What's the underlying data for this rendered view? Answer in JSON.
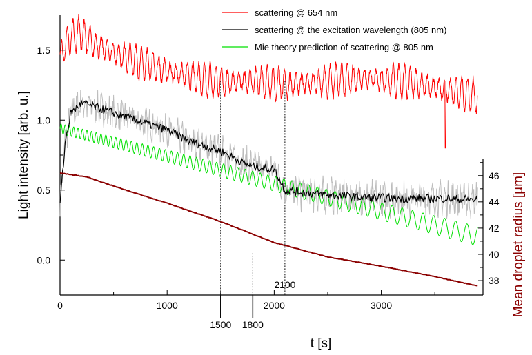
{
  "chart_data": {
    "type": "line",
    "xlabel": "t [s]",
    "ylabel_left": "Light intensity [arb. u.]",
    "ylabel_right": "Mean droplet radius [µm]",
    "xlim": [
      0,
      3950
    ],
    "ylim_left": [
      -0.25,
      1.75
    ],
    "ylim_right": [
      36.9,
      47.3
    ],
    "x_ticks": [
      "0",
      "1000",
      "2000",
      "3000"
    ],
    "y_left_ticks": [
      "0.0",
      "0.5",
      "1.0",
      "1.5"
    ],
    "y_right_ticks": [
      "38",
      "40",
      "42",
      "44",
      "46"
    ],
    "marker_labels": [
      "1500",
      "1800",
      "2100"
    ],
    "markers": [
      {
        "t": 1500,
        "label": "1500"
      },
      {
        "t": 1800,
        "label": "1800"
      },
      {
        "t": 2100,
        "label": "2100"
      }
    ],
    "colors": {
      "scatter_654": "#ff0000",
      "scatter_805": "#000000",
      "scatter_805_raw": "#bdbdbd",
      "mie": "#00e000",
      "radius": "#8b0000",
      "right_axis_label": "#8b0000"
    },
    "grid": false,
    "legend_position": "top-right",
    "series": [
      {
        "name": "scattering @ 654 nm",
        "axis": "left",
        "color": "#ff0000",
        "oscillation_amplitude": 0.12,
        "x": [
          0,
          100,
          200,
          300,
          500,
          700,
          1000,
          1300,
          1500,
          1800,
          2100,
          2400,
          2800,
          3200,
          3600,
          3900
        ],
        "y": [
          1.45,
          1.6,
          1.62,
          1.55,
          1.48,
          1.42,
          1.35,
          1.3,
          1.27,
          1.28,
          1.25,
          1.27,
          1.3,
          1.28,
          1.22,
          1.17
        ]
      },
      {
        "name": "scattering @ the excitation wavelength (805 nm)",
        "axis": "left",
        "color": "#000000",
        "x": [
          0,
          50,
          100,
          200,
          300,
          500,
          700,
          1000,
          1200,
          1500,
          1700,
          1800,
          2000,
          2100,
          2400,
          2800,
          3200,
          3600,
          3900
        ],
        "y": [
          0.4,
          0.85,
          1.05,
          1.12,
          1.1,
          1.05,
          1.0,
          0.93,
          0.85,
          0.78,
          0.7,
          0.67,
          0.65,
          0.5,
          0.47,
          0.45,
          0.44,
          0.44,
          0.43
        ]
      },
      {
        "name": "Mie theory prediction of scattering @ 805 nm",
        "axis": "left",
        "color": "#00e000",
        "oscillation_amplitude_start": 0.035,
        "oscillation_amplitude_end": 0.07,
        "x": [
          0,
          3900
        ],
        "y": [
          0.94,
          0.17
        ]
      },
      {
        "axis": "right",
        "color": "#8b0000",
        "x": [
          0,
          250,
          500,
          1000,
          1500,
          2000,
          2500,
          3000,
          3500,
          3900
        ],
        "y": [
          46.2,
          45.9,
          45.2,
          43.9,
          42.5,
          40.9,
          39.8,
          39.1,
          38.3,
          37.6
        ]
      }
    ]
  }
}
